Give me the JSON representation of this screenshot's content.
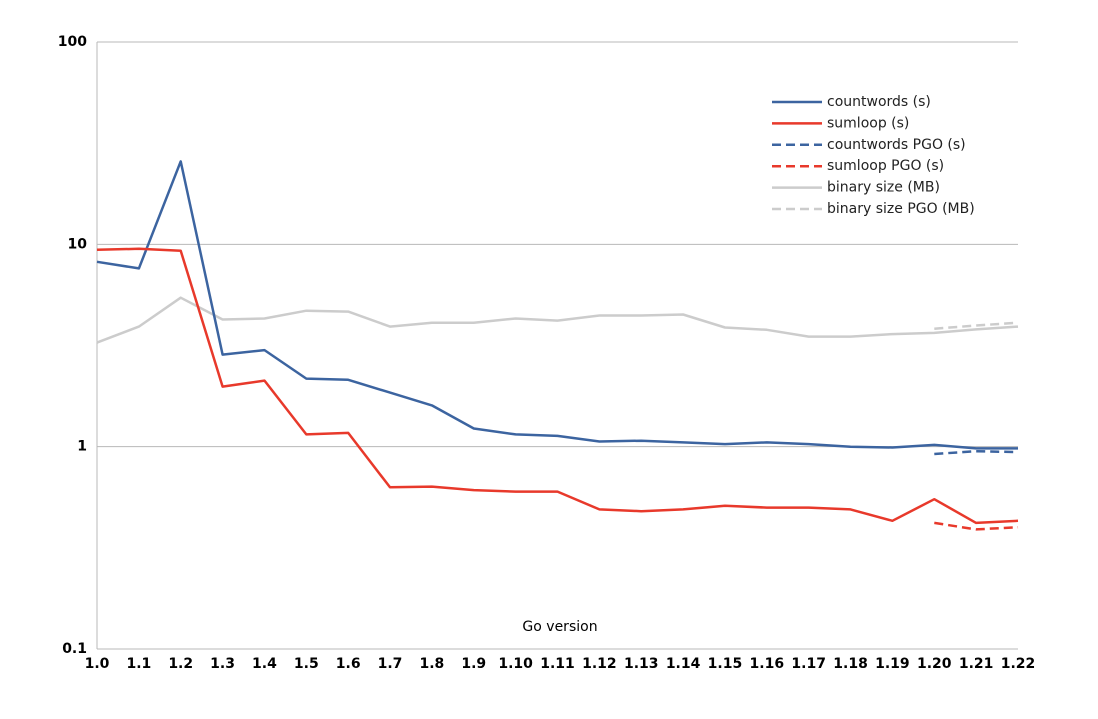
{
  "chart_data": {
    "type": "line",
    "xlabel": "Go version",
    "categories": [
      "1.0",
      "1.1",
      "1.2",
      "1.3",
      "1.4",
      "1.5",
      "1.6",
      "1.7",
      "1.8",
      "1.9",
      "1.10",
      "1.11",
      "1.12",
      "1.13",
      "1.14",
      "1.15",
      "1.16",
      "1.17",
      "1.18",
      "1.19",
      "1.20",
      "1.21",
      "1.22"
    ],
    "series": [
      {
        "name": "countwords (s)",
        "color": "#3c64a0",
        "style": "solid",
        "values": [
          8.2,
          7.6,
          25.7,
          2.85,
          3.0,
          2.17,
          2.14,
          1.85,
          1.6,
          1.23,
          1.15,
          1.13,
          1.06,
          1.07,
          1.05,
          1.03,
          1.05,
          1.03,
          1.0,
          0.99,
          1.02,
          0.98,
          0.98
        ]
      },
      {
        "name": "sumloop (s)",
        "color": "#e8392b",
        "style": "solid",
        "values": [
          9.4,
          9.5,
          9.3,
          1.98,
          2.12,
          1.15,
          1.17,
          0.63,
          0.635,
          0.61,
          0.6,
          0.6,
          0.49,
          0.48,
          0.49,
          0.51,
          0.5,
          0.5,
          0.49,
          0.43,
          0.55,
          0.42,
          0.43
        ]
      },
      {
        "name": "countwords PGO (s)",
        "color": "#3c64a0",
        "style": "dashed",
        "values": [
          null,
          null,
          null,
          null,
          null,
          null,
          null,
          null,
          null,
          null,
          null,
          null,
          null,
          null,
          null,
          null,
          null,
          null,
          null,
          null,
          0.92,
          0.95,
          0.94
        ]
      },
      {
        "name": "sumloop PGO (s)",
        "color": "#e8392b",
        "style": "dashed",
        "values": [
          null,
          null,
          null,
          null,
          null,
          null,
          null,
          null,
          null,
          null,
          null,
          null,
          null,
          null,
          null,
          null,
          null,
          null,
          null,
          null,
          0.42,
          0.39,
          0.4
        ]
      },
      {
        "name": "binary size (MB)",
        "color": "#cccccc",
        "style": "solid",
        "values": [
          3.27,
          3.92,
          5.45,
          4.25,
          4.3,
          4.7,
          4.65,
          3.92,
          4.1,
          4.1,
          4.3,
          4.2,
          4.45,
          4.45,
          4.5,
          3.88,
          3.78,
          3.5,
          3.5,
          3.6,
          3.65,
          3.8,
          3.92
        ]
      },
      {
        "name": "binary size PGO (MB)",
        "color": "#cccccc",
        "style": "dashed",
        "values": [
          null,
          null,
          null,
          null,
          null,
          null,
          null,
          null,
          null,
          null,
          null,
          null,
          null,
          null,
          null,
          null,
          null,
          null,
          null,
          null,
          3.83,
          3.97,
          4.1
        ]
      }
    ],
    "ylim": [
      0.1,
      100
    ],
    "yticks": [
      0.1,
      1,
      10,
      100
    ],
    "log_scale": true,
    "grid": true,
    "legend": "upper right"
  }
}
